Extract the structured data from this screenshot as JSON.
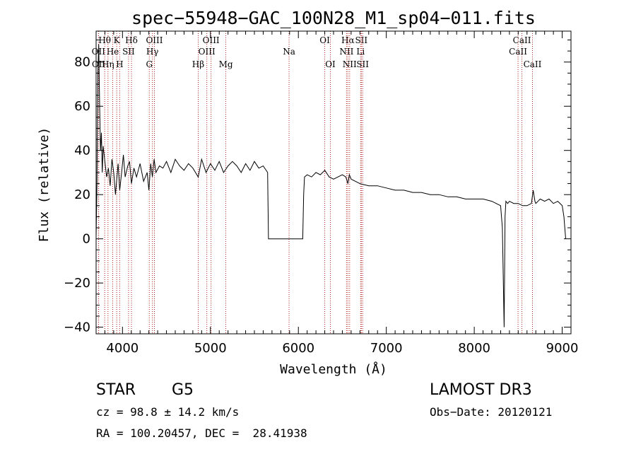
{
  "chart_data": {
    "type": "line",
    "title": "spec−55948−GAC_100N28_M1_sp04−011.fits",
    "xlabel": "Wavelength (Å)",
    "ylabel": "Flux (relative)",
    "xlim": [
      3700,
      9100
    ],
    "ylim": [
      -43,
      94
    ],
    "xticks": [
      4000,
      5000,
      6000,
      7000,
      8000,
      9000
    ],
    "yticks": [
      -40,
      -20,
      0,
      20,
      40,
      60,
      80
    ],
    "xtick_labels": [
      "4000",
      "5000",
      "6000",
      "7000",
      "8000",
      "9000"
    ],
    "ytick_labels": [
      "−40",
      "−20",
      "0",
      "20",
      "40",
      "60",
      "80"
    ],
    "series": [
      {
        "name": "flux",
        "x": [
          3700,
          3710,
          3720,
          3730,
          3740,
          3750,
          3760,
          3770,
          3780,
          3800,
          3820,
          3840,
          3860,
          3880,
          3900,
          3920,
          3933,
          3950,
          3968,
          3990,
          4010,
          4030,
          4060,
          4080,
          4102,
          4130,
          4160,
          4200,
          4240,
          4280,
          4300,
          4320,
          4340,
          4360,
          4380,
          4420,
          4460,
          4500,
          4550,
          4600,
          4650,
          4700,
          4750,
          4800,
          4861,
          4900,
          4950,
          5000,
          5050,
          5100,
          5150,
          5200,
          5250,
          5300,
          5350,
          5400,
          5450,
          5500,
          5550,
          5600,
          5650,
          5660,
          5680,
          5700,
          5800,
          5900,
          6000,
          6050,
          6060,
          6070,
          6100,
          6150,
          6200,
          6250,
          6300,
          6350,
          6400,
          6450,
          6500,
          6540,
          6563,
          6580,
          6600,
          6650,
          6700,
          6800,
          6900,
          7000,
          7100,
          7200,
          7300,
          7400,
          7500,
          7600,
          7700,
          7800,
          7900,
          8000,
          8100,
          8200,
          8250,
          8300,
          8320,
          8340,
          8350,
          8360,
          8380,
          8400,
          8450,
          8500,
          8550,
          8600,
          8650,
          8670,
          8690,
          8700,
          8750,
          8800,
          8850,
          8900,
          8950,
          9000,
          9020,
          9040
        ],
        "values": [
          1,
          25,
          75,
          88,
          60,
          40,
          48,
          30,
          42,
          35,
          28,
          32,
          24,
          36,
          30,
          20,
          26,
          34,
          22,
          30,
          38,
          28,
          33,
          35,
          25,
          32,
          28,
          34,
          26,
          30,
          22,
          34,
          28,
          36,
          30,
          33,
          32,
          35,
          30,
          36,
          33,
          31,
          34,
          32,
          28,
          36,
          30,
          34,
          31,
          35,
          30,
          33,
          35,
          33,
          30,
          34,
          31,
          35,
          32,
          33,
          30,
          0,
          0,
          0,
          0,
          0,
          0,
          0,
          20,
          28,
          29,
          28,
          30,
          29,
          31,
          28,
          27,
          28,
          29,
          28,
          25,
          29,
          27,
          26,
          25,
          24,
          24,
          23,
          22,
          22,
          21,
          21,
          20,
          20,
          19,
          19,
          18,
          18,
          18,
          17,
          16,
          15,
          5,
          -40,
          10,
          17,
          16,
          17,
          16,
          16,
          15,
          15,
          16,
          22,
          17,
          16,
          18,
          17,
          18,
          16,
          17,
          15,
          10,
          0
        ]
      }
    ],
    "line_markers": [
      {
        "label": "Hθ",
        "x": 3798,
        "row": 1
      },
      {
        "label": "OII",
        "x": 3727,
        "row": 2
      },
      {
        "label": "OII",
        "x": 3729,
        "row": 3
      },
      {
        "label": "He",
        "x": 3889,
        "row": 2
      },
      {
        "label": "Hη",
        "x": 3835,
        "row": 3
      },
      {
        "label": "K",
        "x": 3934,
        "row": 1
      },
      {
        "label": "SII",
        "x": 4069,
        "row": 2
      },
      {
        "label": "H",
        "x": 3968,
        "row": 3
      },
      {
        "label": "Hδ",
        "x": 4102,
        "row": 1
      },
      {
        "label": "OIII",
        "x": 4363,
        "row": 1
      },
      {
        "label": "Hγ",
        "x": 4340,
        "row": 2
      },
      {
        "label": "G",
        "x": 4305,
        "row": 3
      },
      {
        "label": "OIII",
        "x": 5007,
        "row": 1
      },
      {
        "label": "OIII",
        "x": 4959,
        "row": 2
      },
      {
        "label": "Hβ",
        "x": 4861,
        "row": 3
      },
      {
        "label": "Mg",
        "x": 5175,
        "row": 3
      },
      {
        "label": "Na",
        "x": 5894,
        "row": 2
      },
      {
        "label": "OI",
        "x": 6300,
        "row": 1
      },
      {
        "label": "OI",
        "x": 6364,
        "row": 3
      },
      {
        "label": "Hα",
        "x": 6563,
        "row": 1
      },
      {
        "label": "NII",
        "x": 6548,
        "row": 2
      },
      {
        "label": "NII",
        "x": 6583,
        "row": 3
      },
      {
        "label": "SII",
        "x": 6716,
        "row": 1
      },
      {
        "label": "Li",
        "x": 6708,
        "row": 2
      },
      {
        "label": "SII",
        "x": 6731,
        "row": 3
      },
      {
        "label": "CaII",
        "x": 8542,
        "row": 1
      },
      {
        "label": "CaII",
        "x": 8498,
        "row": 2
      },
      {
        "label": "CaII",
        "x": 8662,
        "row": 3
      }
    ],
    "colors": {
      "line": "#000000",
      "markers": "#b22222",
      "axes": "#000000"
    }
  },
  "info": {
    "object_class": "STAR",
    "subclass": "G5",
    "survey": "LAMOST DR3",
    "cz": "cz = 98.8 ± 14.2 km/s",
    "obs_date": "Obs−Date: 20120121",
    "coords": "RA = 100.20457, DEC =  28.41938"
  }
}
